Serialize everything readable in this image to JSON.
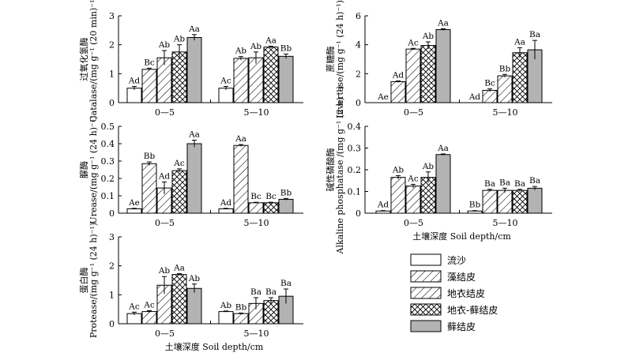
{
  "legend": [
    {
      "label": "流沙",
      "fill": "white"
    },
    {
      "label": "藻结皮",
      "fill": "diag"
    },
    {
      "label": "地衣结皮",
      "fill": "diag"
    },
    {
      "label": "地衣-藓结皮",
      "fill": "cross"
    },
    {
      "label": "藓结皮",
      "fill": "gray"
    }
  ],
  "colors": {
    "gray_bar": "#b3b3b3",
    "stroke": "#000000"
  },
  "chart_data": [
    {
      "type": "bar",
      "ylabel_cn": "过氧化氢酶",
      "ylabel": "Catalase/(mg g⁻¹ (20 min)⁻¹)",
      "xlabel": "",
      "ylim": [
        0,
        3
      ],
      "yticks": [
        "0",
        "1",
        "2",
        "3"
      ],
      "categories": [
        "0—5",
        "5—10"
      ],
      "series": [
        {
          "name": "流沙",
          "values": [
            0.5,
            0.5
          ],
          "errors": [
            0.06,
            0.06
          ],
          "letters": [
            "Ad",
            "Ac"
          ]
        },
        {
          "name": "藻结皮",
          "values": [
            1.15,
            1.53
          ],
          "errors": [
            0.04,
            0.06
          ],
          "letters": [
            "Bc",
            "Ab"
          ]
        },
        {
          "name": "地衣结皮",
          "values": [
            1.55,
            1.55
          ],
          "errors": [
            0.25,
            0.2
          ],
          "letters": [
            "Ab",
            "Ab"
          ]
        },
        {
          "name": "地衣-藓结皮",
          "values": [
            1.75,
            1.92
          ],
          "errors": [
            0.25,
            0.03
          ],
          "letters": [
            "Ab",
            "Aa"
          ]
        },
        {
          "name": "藓结皮",
          "values": [
            2.25,
            1.6
          ],
          "errors": [
            0.1,
            0.08
          ],
          "letters": [
            "Aa",
            "Bb"
          ]
        }
      ]
    },
    {
      "type": "bar",
      "ylabel_cn": "蔗糖酶",
      "ylabel": "Invertase/(mg g⁻¹ (24 h)⁻¹)",
      "xlabel": "",
      "ylim": [
        0,
        6
      ],
      "yticks": [
        "0",
        "2",
        "4",
        "6"
      ],
      "categories": [
        "0—5",
        "5—10"
      ],
      "series": [
        {
          "name": "流沙",
          "values": [
            0,
            0
          ],
          "errors": [
            0,
            0
          ],
          "letters": [
            "Ae",
            "Ad"
          ]
        },
        {
          "name": "藻结皮",
          "values": [
            1.45,
            0.85
          ],
          "errors": [
            0.05,
            0.1
          ],
          "letters": [
            "Ad",
            "Bc"
          ]
        },
        {
          "name": "地衣结皮",
          "values": [
            3.7,
            1.85
          ],
          "errors": [
            0.05,
            0.1
          ],
          "letters": [
            "Ac",
            "Bb"
          ]
        },
        {
          "name": "地衣-藓结皮",
          "values": [
            3.95,
            3.45
          ],
          "errors": [
            0.25,
            0.35
          ],
          "letters": [
            "Ab",
            "Aa"
          ]
        },
        {
          "name": "藓结皮",
          "values": [
            5.05,
            3.65
          ],
          "errors": [
            0.05,
            0.65
          ],
          "letters": [
            "Aa",
            "Ba"
          ]
        }
      ]
    },
    {
      "type": "bar",
      "ylabel_cn": "脲酶",
      "ylabel": "Urease/(mg g⁻¹ (24 h)⁻¹)",
      "xlabel": "",
      "ylim": [
        0,
        0.5
      ],
      "yticks": [
        "0",
        "0.1",
        "0.2",
        "0.3",
        "0.4",
        "0.5"
      ],
      "categories": [
        "0—5",
        "5—10"
      ],
      "series": [
        {
          "name": "流沙",
          "values": [
            0.025,
            0.025
          ],
          "errors": [
            0.003,
            0.003
          ],
          "letters": [
            "Ae",
            "Ad"
          ]
        },
        {
          "name": "藻结皮",
          "values": [
            0.285,
            0.39
          ],
          "errors": [
            0.01,
            0.005
          ],
          "letters": [
            "Bb",
            "Aa"
          ]
        },
        {
          "name": "地衣结皮",
          "values": [
            0.145,
            0.06
          ],
          "errors": [
            0.035,
            0.003
          ],
          "letters": [
            "Ad",
            "Bc"
          ]
        },
        {
          "name": "地衣-藓结皮",
          "values": [
            0.245,
            0.06
          ],
          "errors": [
            0.01,
            0.003
          ],
          "letters": [
            "Ac",
            "Bc"
          ]
        },
        {
          "name": "藓结皮",
          "values": [
            0.4,
            0.08
          ],
          "errors": [
            0.02,
            0.005
          ],
          "letters": [
            "Aa",
            "Bb"
          ]
        }
      ]
    },
    {
      "type": "bar",
      "ylabel_cn": "碱性磷酸酶",
      "ylabel": "Alkaline phosphatase /(mg g⁻¹ (2 h)⁻¹)",
      "xlabel": "土壤深度 Soil depth/cm",
      "ylim": [
        0,
        0.4
      ],
      "yticks": [
        "0",
        "0.1",
        "0.2",
        "0.3",
        "0.4"
      ],
      "categories": [
        "0—5",
        "5—10"
      ],
      "series": [
        {
          "name": "流沙",
          "values": [
            0.01,
            0.01
          ],
          "errors": [
            0.002,
            0.002
          ],
          "letters": [
            "Ad",
            "Bb"
          ]
        },
        {
          "name": "藻结皮",
          "values": [
            0.165,
            0.105
          ],
          "errors": [
            0.008,
            0.005
          ],
          "letters": [
            "Ab",
            "Ba"
          ]
        },
        {
          "name": "地衣结皮",
          "values": [
            0.125,
            0.105
          ],
          "errors": [
            0.008,
            0.01
          ],
          "letters": [
            "Ac",
            "Ba"
          ]
        },
        {
          "name": "地衣-藓结皮",
          "values": [
            0.165,
            0.105
          ],
          "errors": [
            0.025,
            0.005
          ],
          "letters": [
            "Ab",
            "Ba"
          ]
        },
        {
          "name": "藓结皮",
          "values": [
            0.27,
            0.115
          ],
          "errors": [
            0.003,
            0.008
          ],
          "letters": [
            "Aa",
            "Ba"
          ]
        }
      ]
    },
    {
      "type": "bar",
      "ylabel_cn": "蛋白酶",
      "ylabel": "Protease/(mg g⁻¹ (24 h)⁻¹)",
      "xlabel": "土壤深度 Soil depth/cm",
      "ylim": [
        0,
        3
      ],
      "yticks": [
        "0",
        "1",
        "2",
        "3"
      ],
      "categories": [
        "0—5",
        "5—10"
      ],
      "series": [
        {
          "name": "流沙",
          "values": [
            0.35,
            0.42
          ],
          "errors": [
            0.05,
            0.02
          ],
          "letters": [
            "Ac",
            "Ab"
          ]
        },
        {
          "name": "藻结皮",
          "values": [
            0.42,
            0.35
          ],
          "errors": [
            0.03,
            0.02
          ],
          "letters": [
            "Ac",
            "Bb"
          ]
        },
        {
          "name": "地衣结皮",
          "values": [
            1.33,
            0.7
          ],
          "errors": [
            0.3,
            0.2
          ],
          "letters": [
            "Ab",
            "Ba"
          ]
        },
        {
          "name": "地衣-藓结皮",
          "values": [
            1.7,
            0.8
          ],
          "errors": [
            0.03,
            0.1
          ],
          "letters": [
            "Aa",
            "Ba"
          ]
        },
        {
          "name": "藓结皮",
          "values": [
            1.22,
            0.95
          ],
          "errors": [
            0.15,
            0.25
          ],
          "letters": [
            "Ab",
            "Ba"
          ]
        }
      ]
    }
  ]
}
